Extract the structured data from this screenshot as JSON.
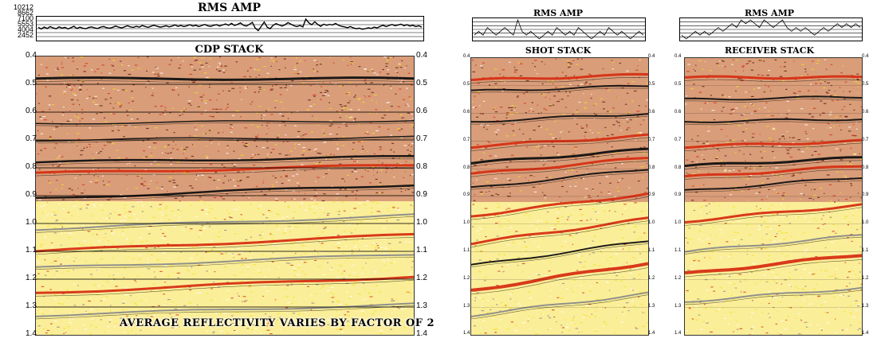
{
  "chart_data": [
    {
      "type": "line",
      "title": "RMS AMP",
      "yticks": [
        "10212",
        "8662",
        "7100",
        "5553",
        "4004",
        "2452"
      ],
      "ylim": [
        2452,
        10212
      ],
      "values": [
        6800,
        6200,
        6900,
        6400,
        7100,
        6600,
        6300,
        7000,
        6500,
        6800,
        6200,
        6700,
        7200,
        6400,
        6900,
        6500,
        6300,
        6800,
        7000,
        6600,
        6400,
        6900,
        7100,
        6700,
        6500,
        6800,
        7300,
        6900,
        6600,
        7000,
        7400,
        7000,
        6800,
        7200,
        6900,
        7500,
        7100,
        6800,
        7300,
        7600,
        7200,
        6900,
        7100,
        7400,
        7000,
        7300,
        7700,
        7200,
        7500,
        7100,
        7400,
        7800,
        7300,
        7600,
        7100,
        7500,
        7900,
        7400,
        7200,
        7600,
        7800,
        7300,
        7700,
        8100,
        7600,
        8300,
        7500,
        7900,
        8500,
        7600,
        7300,
        7900,
        8700,
        6500,
        5600,
        7200,
        8800,
        6900,
        6300,
        7600,
        8200,
        7700,
        7300,
        7800,
        8600,
        8000,
        7400,
        7100,
        7500,
        7000,
        9900,
        8500,
        7800,
        8900,
        7900,
        7200,
        8000,
        7600,
        7900,
        7700,
        8300,
        7600,
        7200,
        7000,
        6700,
        7100,
        6600,
        6300,
        6500,
        6100,
        6300,
        6700,
        6400,
        6900,
        6600,
        7200,
        7600,
        7100,
        7500,
        7900,
        7400,
        7700,
        8000,
        7400,
        7800,
        7300,
        7600,
        7100,
        7400,
        6900
      ],
      "panel_title": "CDP STACK",
      "ylabel_ticks": [
        "0.4",
        "0.5",
        "0.6",
        "0.7",
        "0.8",
        "0.9",
        "1.0",
        "1.1",
        "1.2",
        "1.3",
        "1.4"
      ],
      "note": "AVERAGE REFLECTIVITY VARIES BY FACTOR OF 2",
      "reflectors": [
        {
          "t": 0.48,
          "dip": 0.0,
          "color": "black",
          "weight": 3
        },
        {
          "t": 0.64,
          "dip": -0.01,
          "color": "black",
          "weight": 1.5
        },
        {
          "t": 0.7,
          "dip": -0.01,
          "color": "black",
          "weight": 1.5
        },
        {
          "t": 0.78,
          "dip": -0.02,
          "color": "black",
          "weight": 2.5
        },
        {
          "t": 0.82,
          "dip": -0.03,
          "color": "red",
          "weight": 3
        },
        {
          "t": 0.91,
          "dip": -0.05,
          "color": "black",
          "weight": 2.5
        },
        {
          "t": 1.02,
          "dip": -0.05,
          "color": "gray",
          "weight": 2
        },
        {
          "t": 1.1,
          "dip": -0.06,
          "color": "red",
          "weight": 3
        },
        {
          "t": 1.16,
          "dip": -0.05,
          "color": "gray",
          "weight": 2
        },
        {
          "t": 1.25,
          "dip": -0.06,
          "color": "red",
          "weight": 3
        },
        {
          "t": 1.33,
          "dip": -0.04,
          "color": "gray",
          "weight": 2
        }
      ]
    },
    {
      "type": "line",
      "title": "RMS AMP",
      "values": [
        5,
        6,
        5,
        7,
        6,
        5,
        6,
        7,
        6,
        5,
        9,
        6,
        5,
        6,
        5,
        4,
        5,
        6,
        5,
        7,
        6,
        5,
        6,
        5,
        7,
        6,
        5,
        4,
        5,
        6,
        5,
        7,
        6,
        5,
        6,
        5,
        4,
        5,
        6,
        5
      ],
      "panel_title": "SHOT STACK",
      "ylabel_ticks": [
        "0.4",
        "0.5",
        "0.6",
        "0.7",
        "0.8",
        "0.9",
        "1.0",
        "1.1",
        "1.2",
        "1.3",
        "1.4"
      ],
      "reflectors": [
        {
          "t": 0.48,
          "dip": -0.02,
          "color": "red",
          "weight": 3
        },
        {
          "t": 0.52,
          "dip": -0.02,
          "color": "black",
          "weight": 2
        },
        {
          "t": 0.63,
          "dip": -0.03,
          "color": "black",
          "weight": 2
        },
        {
          "t": 0.72,
          "dip": -0.04,
          "color": "red",
          "weight": 3
        },
        {
          "t": 0.78,
          "dip": -0.05,
          "color": "black",
          "weight": 3
        },
        {
          "t": 0.82,
          "dip": -0.06,
          "color": "red",
          "weight": 3
        },
        {
          "t": 0.87,
          "dip": -0.07,
          "color": "black",
          "weight": 2
        },
        {
          "t": 0.97,
          "dip": -0.08,
          "color": "red",
          "weight": 3
        },
        {
          "t": 1.07,
          "dip": -0.09,
          "color": "red",
          "weight": 3
        },
        {
          "t": 1.15,
          "dip": -0.09,
          "color": "black",
          "weight": 2
        },
        {
          "t": 1.24,
          "dip": -0.1,
          "color": "red",
          "weight": 4
        },
        {
          "t": 1.33,
          "dip": -0.08,
          "color": "gray",
          "weight": 2
        }
      ]
    },
    {
      "type": "line",
      "title": "RMS AMP",
      "values": [
        4,
        3,
        4,
        5,
        4,
        5,
        4,
        5,
        6,
        5,
        6,
        7,
        6,
        8,
        7,
        8,
        7,
        6,
        8,
        7,
        6,
        7,
        8,
        6,
        5,
        6,
        5,
        6,
        5,
        4,
        5,
        6,
        5,
        6,
        7,
        6,
        7,
        6,
        7,
        6
      ],
      "panel_title": "RECEIVER STACK",
      "ylabel_ticks": [
        "0.4",
        "0.5",
        "0.6",
        "0.7",
        "0.8",
        "0.9",
        "1.0",
        "1.1",
        "1.2",
        "1.3",
        "1.4"
      ],
      "reflectors": [
        {
          "t": 0.47,
          "dip": 0.0,
          "color": "red",
          "weight": 3
        },
        {
          "t": 0.55,
          "dip": -0.01,
          "color": "black",
          "weight": 2
        },
        {
          "t": 0.63,
          "dip": -0.01,
          "color": "black",
          "weight": 2
        },
        {
          "t": 0.72,
          "dip": -0.02,
          "color": "red",
          "weight": 3
        },
        {
          "t": 0.79,
          "dip": -0.03,
          "color": "black",
          "weight": 3
        },
        {
          "t": 0.83,
          "dip": -0.04,
          "color": "red",
          "weight": 3
        },
        {
          "t": 0.88,
          "dip": -0.05,
          "color": "black",
          "weight": 2
        },
        {
          "t": 0.99,
          "dip": -0.06,
          "color": "red",
          "weight": 3
        },
        {
          "t": 1.1,
          "dip": -0.06,
          "color": "gray",
          "weight": 2
        },
        {
          "t": 1.18,
          "dip": -0.07,
          "color": "red",
          "weight": 4
        },
        {
          "t": 1.28,
          "dip": -0.05,
          "color": "gray",
          "weight": 2
        }
      ]
    }
  ],
  "palette": {
    "red": "#d62f14",
    "black": "#111111",
    "gray": "#8a8a8a",
    "yellow": "#f3e021",
    "background": "#fff6d8"
  }
}
